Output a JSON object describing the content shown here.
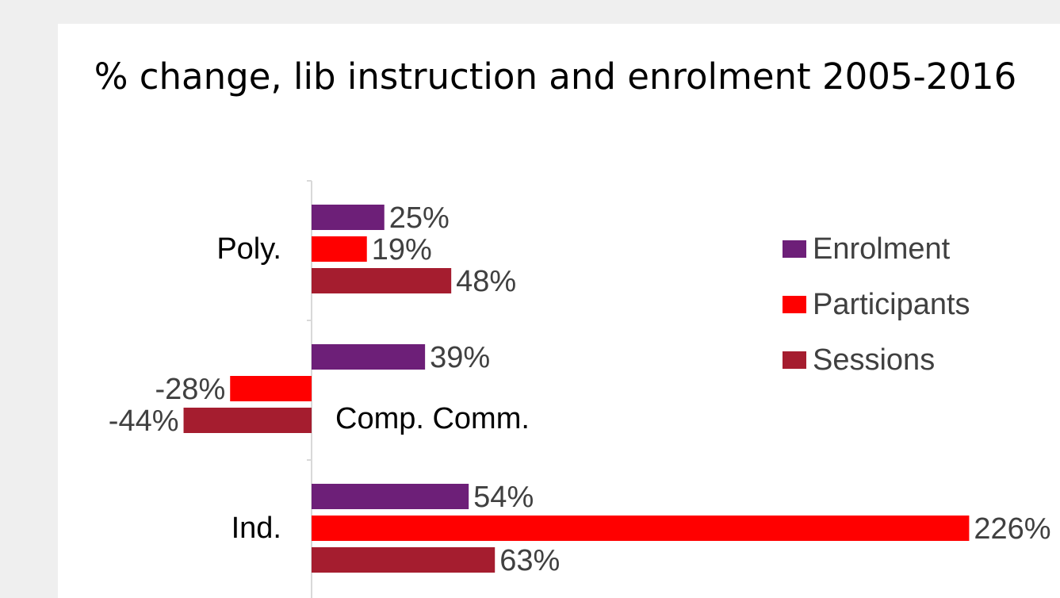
{
  "chart_data": {
    "type": "bar",
    "orientation": "horizontal",
    "title": "% change, lib instruction and enrolment 2005-2016",
    "categories": [
      "Poly.",
      "Comp. Comm.",
      "Ind."
    ],
    "series": [
      {
        "name": "Enrolment",
        "color": "#6d1f78",
        "values": [
          25,
          39,
          54
        ],
        "labels": [
          "25%",
          "39%",
          "54%"
        ]
      },
      {
        "name": "Participants",
        "color": "#ff0000",
        "values": [
          19,
          -28,
          226
        ],
        "labels": [
          "19%",
          "-28%",
          "226%"
        ]
      },
      {
        "name": "Sessions",
        "color": "#a51d2f",
        "values": [
          48,
          -44,
          63
        ],
        "labels": [
          "48%",
          "-44%",
          "63%"
        ]
      }
    ],
    "xlim": [
      -44,
      226
    ],
    "legend_position": "right",
    "grid": false
  }
}
